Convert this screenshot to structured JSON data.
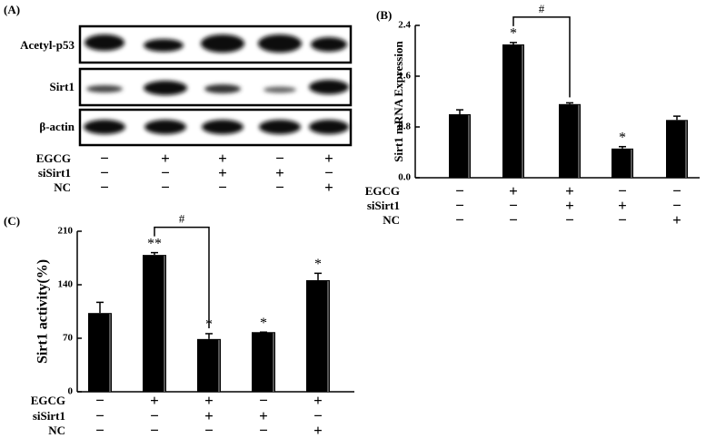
{
  "blot": {
    "title": "(A)",
    "rows": [
      "Acetyl-p53",
      "Sirt1",
      "β-actin"
    ],
    "treatments": [
      {
        "name": "EGCG",
        "signs": [
          "−",
          "+",
          "+",
          "−",
          "+"
        ]
      },
      {
        "name": "siSirt1",
        "signs": [
          "−",
          "−",
          "+",
          "+",
          "−"
        ]
      },
      {
        "name": "NC",
        "signs": [
          "−",
          "−",
          "−",
          "−",
          "+"
        ]
      }
    ]
  },
  "chart_data": [
    {
      "type": "bar",
      "title": "(B)",
      "ylabel": "Sirt1 mRNA Expression",
      "color": "#000000",
      "values": [
        1.0,
        2.1,
        1.16,
        0.46,
        0.91
      ],
      "errors": [
        0.07,
        0.03,
        0.02,
        0.03,
        0.06
      ],
      "bar_labels": [
        null,
        "*",
        null,
        "*",
        null
      ],
      "bracket_label": "#",
      "ylim": [
        0,
        2.4
      ],
      "yticks": [
        {
          "value": 0,
          "label": "0.0"
        },
        0.8,
        1.6,
        2.4
      ],
      "treatments": [
        {
          "name": "EGCG",
          "signs": [
            "−",
            "+",
            "+",
            "−",
            "−"
          ]
        },
        {
          "name": "siSirt1",
          "signs": [
            "−",
            "−",
            "+",
            "+",
            "−"
          ]
        },
        {
          "name": "NC",
          "signs": [
            "−",
            "−",
            "−",
            "−",
            "+"
          ]
        }
      ]
    },
    {
      "type": "bar",
      "title": "(C)",
      "ylabel": "Sirt1 activity(%)",
      "color": "#000000",
      "values": [
        103,
        179,
        69,
        78,
        146
      ],
      "errors": [
        14,
        3,
        7,
        0,
        9
      ],
      "bar_labels": [
        null,
        "**",
        "*",
        "*",
        "*"
      ],
      "bracket_label": "#",
      "ylim": [
        0,
        210
      ],
      "yticks": [
        0,
        70,
        140,
        210
      ],
      "treatments": [
        {
          "name": "EGCG",
          "signs": [
            "−",
            "+",
            "+",
            "−",
            "+"
          ]
        },
        {
          "name": "siSirt1",
          "signs": [
            "−",
            "−",
            "+",
            "+",
            "−"
          ]
        },
        {
          "name": "NC",
          "signs": [
            "−",
            "−",
            "−",
            "−",
            "+"
          ]
        }
      ]
    }
  ]
}
